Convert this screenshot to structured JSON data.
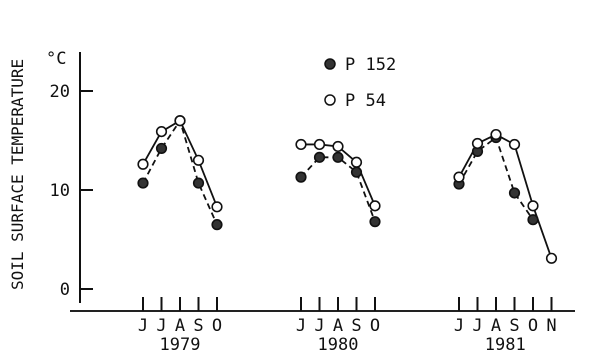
{
  "chart_data": {
    "type": "line",
    "ylabel": "SOIL SURFACE TEMPERATURE",
    "y_unit": "°C",
    "ylim": [
      0,
      20
    ],
    "yticks": [
      "0",
      "10",
      "20"
    ],
    "grid": false,
    "legend_position": "top-center",
    "colors": {
      "P 152": "#333333",
      "P 54": "#ffffff"
    },
    "series": [
      {
        "name": "P 152",
        "marker": "filled-circle",
        "line_style": "dashed"
      },
      {
        "name": "P 54",
        "marker": "open-circle",
        "line_style": "solid"
      }
    ],
    "panels": [
      {
        "year": "1979",
        "months": [
          "J",
          "J",
          "A",
          "S",
          "O"
        ],
        "values": {
          "P 152": [
            10.7,
            14.2,
            17.0,
            10.7,
            6.5
          ],
          "P 54": [
            12.6,
            15.9,
            17.0,
            13.0,
            8.3
          ]
        }
      },
      {
        "year": "1980",
        "months": [
          "J",
          "J",
          "A",
          "S",
          "O"
        ],
        "values": {
          "P 152": [
            11.3,
            13.3,
            13.3,
            11.8,
            6.8
          ],
          "P 54": [
            14.6,
            14.6,
            14.4,
            12.8,
            8.4
          ]
        }
      },
      {
        "year": "1981",
        "months": [
          "J",
          "J",
          "A",
          "S",
          "O",
          "N"
        ],
        "values": {
          "P 152": [
            10.6,
            13.9,
            15.3,
            9.7,
            7.0,
            null
          ],
          "P 54": [
            11.3,
            14.7,
            15.6,
            14.6,
            8.4,
            3.1
          ]
        }
      }
    ]
  }
}
